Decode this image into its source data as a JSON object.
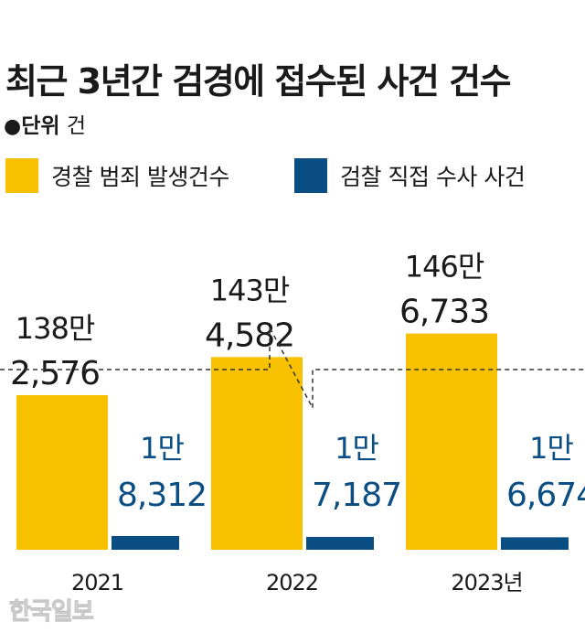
{
  "title": "최근 3년간 검경에 접수된 사건 건수",
  "unit": {
    "bullet": "●",
    "label": "단위",
    "value": "건"
  },
  "watermark": "한국일보",
  "colors": {
    "police": "#F8C100",
    "prosecution": "#0A4E84",
    "text": "#1a1a1a"
  },
  "chart_data": {
    "type": "bar",
    "title": "최근 3년간 검경에 접수된 사건 건수",
    "categories": [
      "2021",
      "2022",
      "2023년"
    ],
    "series": [
      {
        "name": "경찰 범죄 발생건수",
        "values": [
          1382576,
          1434582,
          1466733
        ],
        "labels": [
          [
            "138만",
            "2,576"
          ],
          [
            "143만",
            "4,582"
          ],
          [
            "146만",
            "6,733"
          ]
        ]
      },
      {
        "name": "검찰 직접 수사 사건",
        "values": [
          18312,
          17187,
          16674
        ],
        "labels": [
          [
            "1만",
            "8,312"
          ],
          [
            "1만",
            "7,187"
          ],
          [
            "1만",
            "6,674"
          ]
        ]
      }
    ],
    "axis_break": true,
    "legend": "top"
  }
}
